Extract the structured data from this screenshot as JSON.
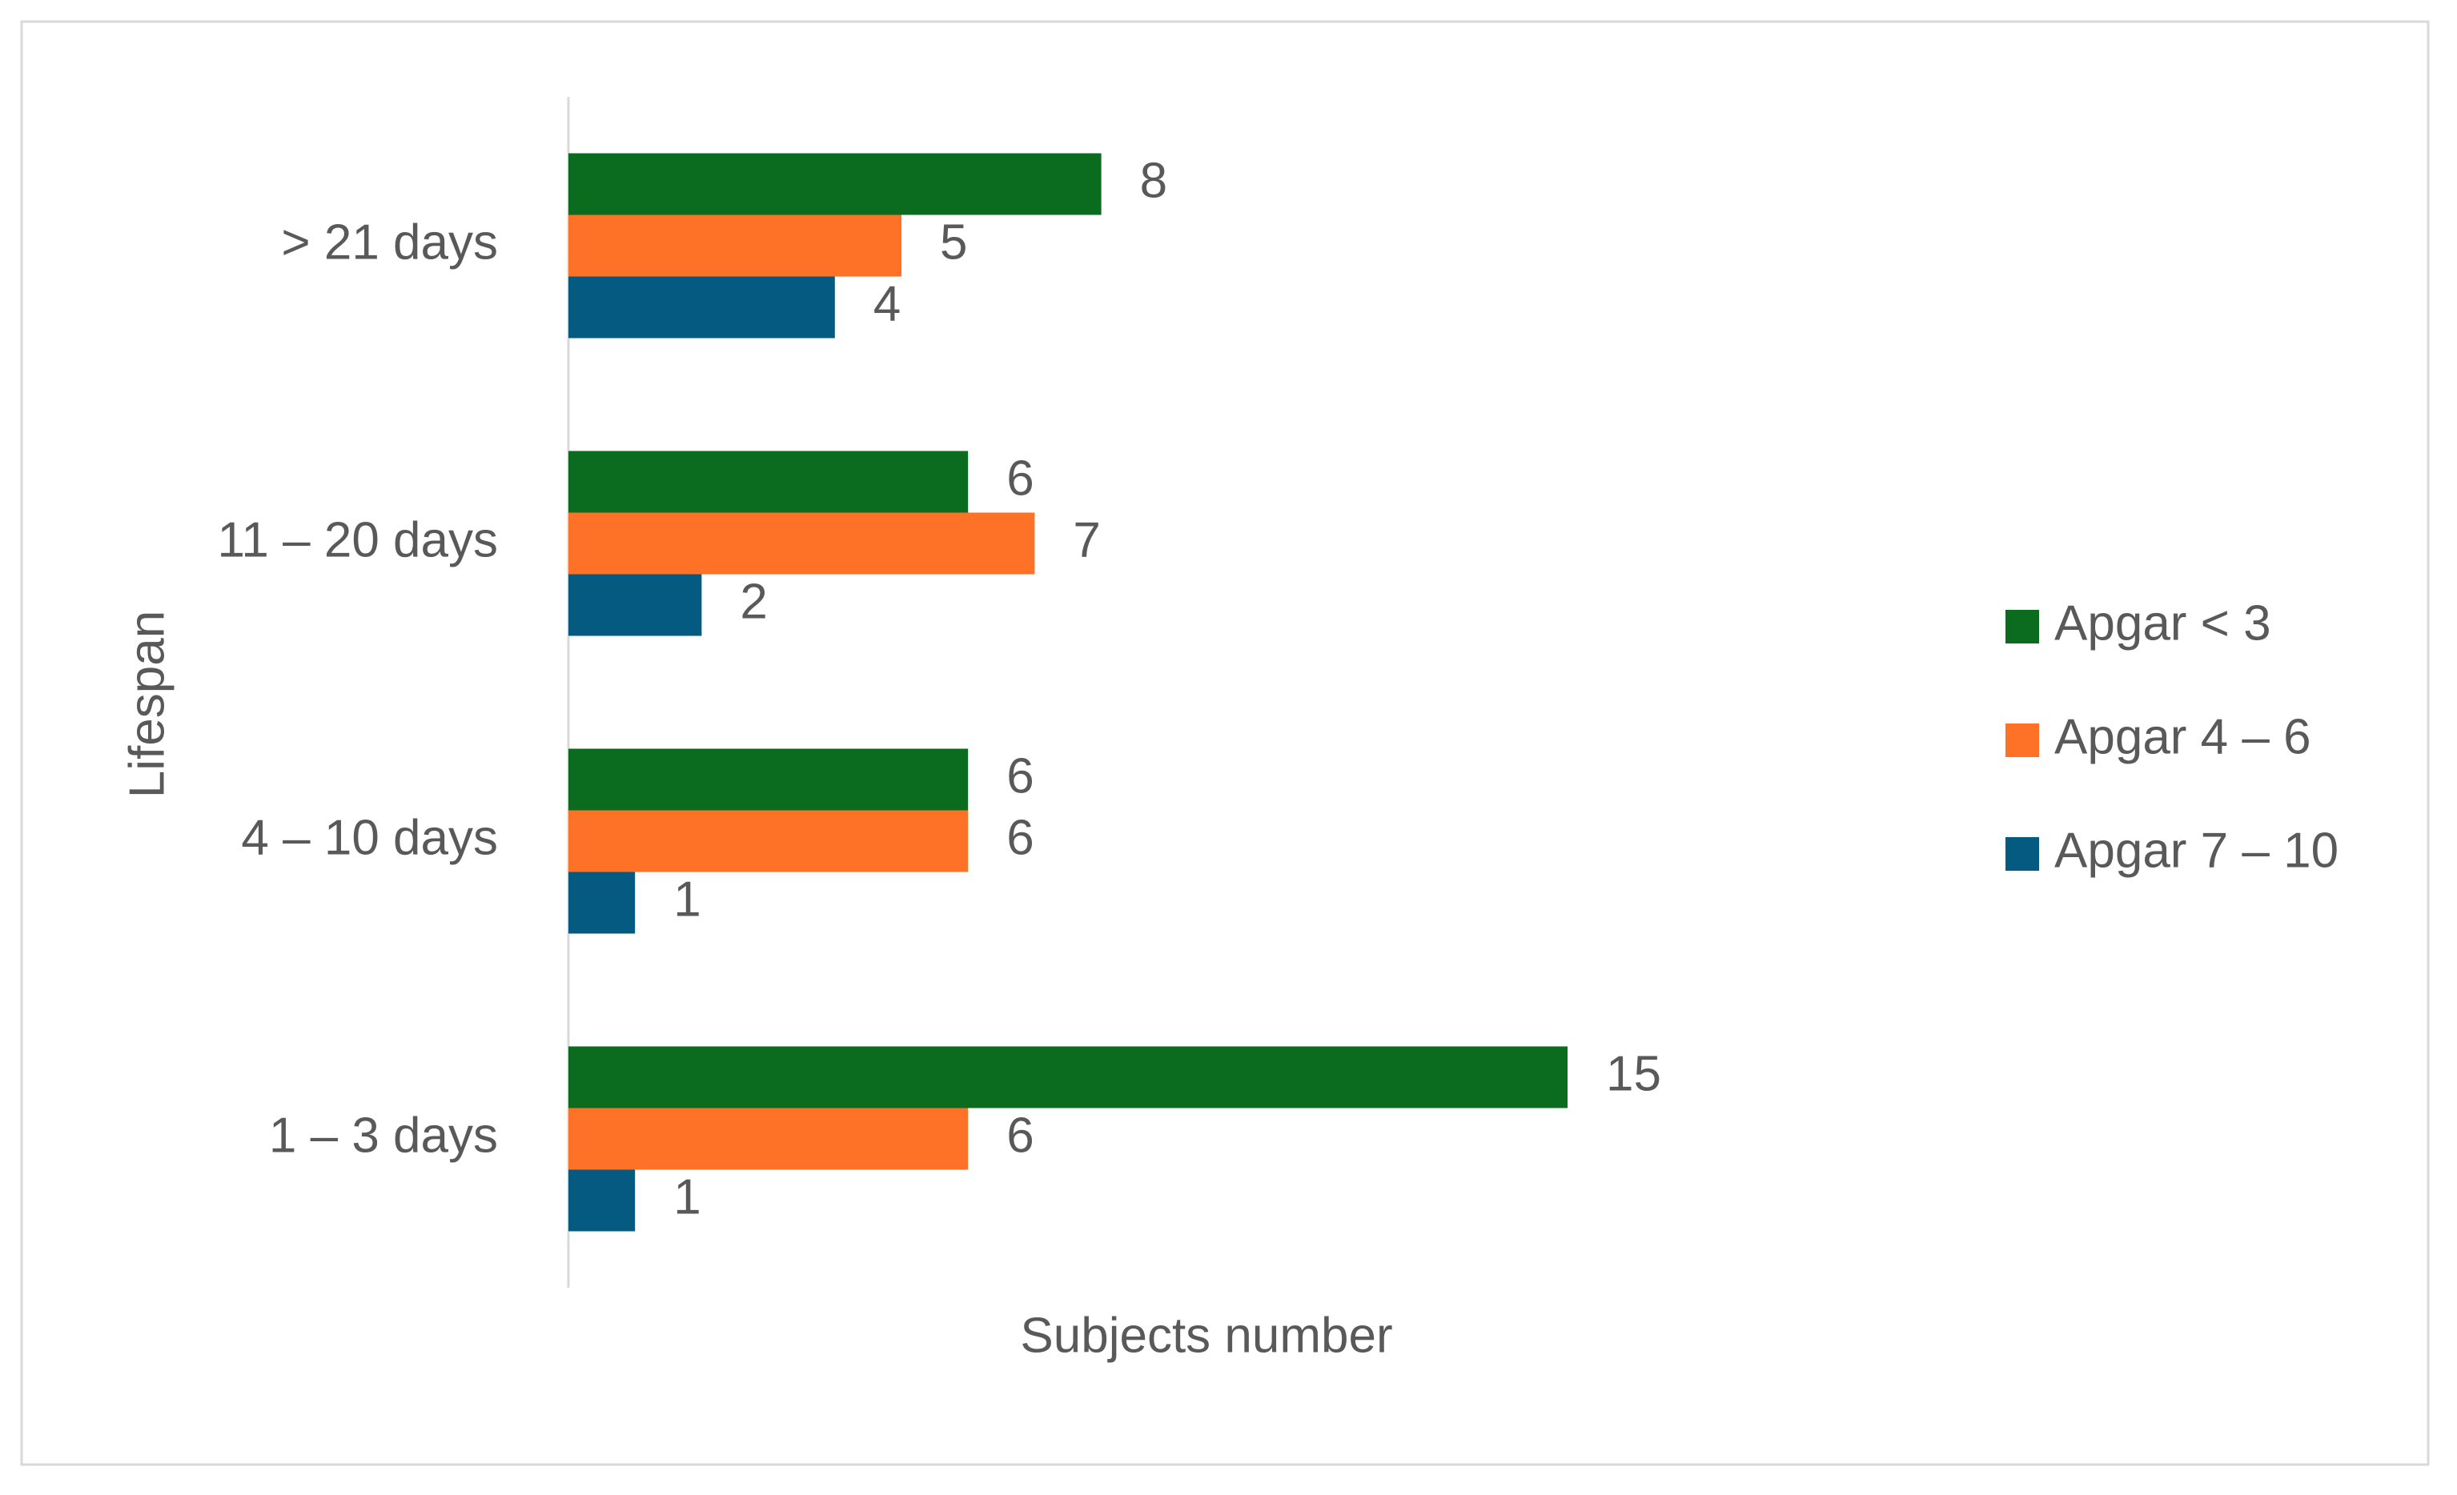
{
  "chart_data": {
    "type": "bar",
    "orientation": "horizontal",
    "y_label": "Lifespan",
    "x_label": "Subjects number",
    "categories": [
      "> 21 days",
      "11 – 20 days",
      "4 – 10 days",
      "1 – 3 days"
    ],
    "series": [
      {
        "name": "Apgar < 3",
        "color": "#0b6b1f",
        "values": [
          8,
          6,
          6,
          15
        ]
      },
      {
        "name": "Apgar 4 – 6",
        "color": "#fd7227",
        "values": [
          5,
          7,
          6,
          6
        ]
      },
      {
        "name": "Apgar 7 – 10",
        "color": "#045a80",
        "values": [
          4,
          2,
          1,
          1
        ]
      }
    ],
    "xlim": [
      0,
      20
    ],
    "legend": "right"
  }
}
